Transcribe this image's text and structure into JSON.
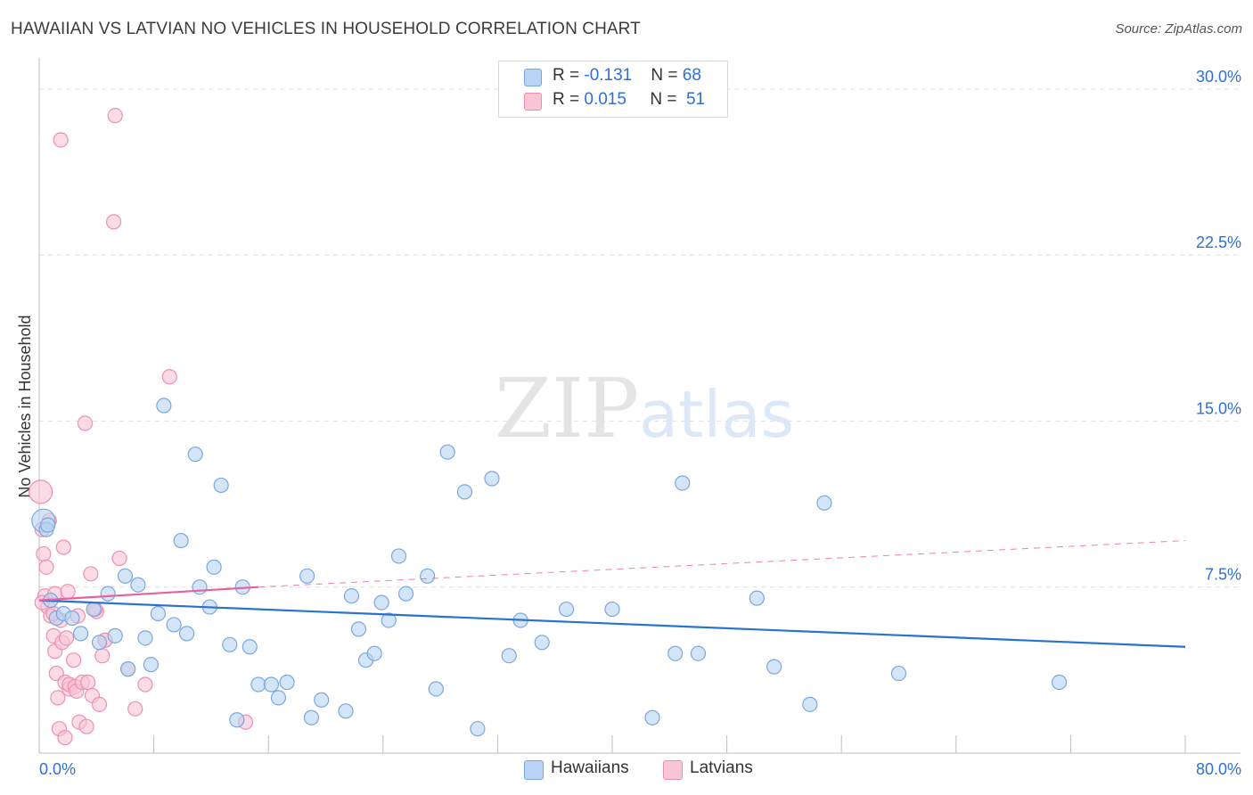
{
  "header": {
    "title": "HAWAIIAN VS LATVIAN NO VEHICLES IN HOUSEHOLD CORRELATION CHART",
    "source": "Source: ZipAtlas.com"
  },
  "watermark": {
    "zip": "ZIP",
    "atlas": "atlas"
  },
  "legend_top": [
    {
      "r_label": "R = ",
      "r_value": "-0.131",
      "n_label": "N = ",
      "n_value": "68"
    },
    {
      "r_label": "R = ",
      "r_value": "0.015",
      "n_label": "N = ",
      "n_value": "51"
    }
  ],
  "legend_bottom": [
    "Hawaiians",
    "Latvians"
  ],
  "colors": {
    "hawaiians_fill": "#b8d3f3",
    "hawaiians_stroke": "#7aa7e0",
    "hawaiians_line": "#2a72d0",
    "latvians_fill": "#f9c5d5",
    "latvians_stroke": "#ef8fb0",
    "latvians_line": "#e8609a",
    "axis_label": "#2f6fd6",
    "grid": "#dddddd"
  },
  "chart_data": {
    "type": "scatter",
    "title": "HAWAIIAN VS LATVIAN NO VEHICLES IN HOUSEHOLD CORRELATION CHART",
    "xlabel": "",
    "ylabel": "No Vehicles in Household",
    "xlim": [
      0,
      80
    ],
    "ylim": [
      0,
      31
    ],
    "x_tick_labels": [
      "0.0%",
      "80.0%"
    ],
    "y_ticks": [
      7.5,
      15.0,
      22.5,
      30.0
    ],
    "y_tick_labels": [
      "7.5%",
      "15.0%",
      "22.5%",
      "30.0%"
    ],
    "grid": true,
    "series": [
      {
        "name": "Hawaiians",
        "r": -0.131,
        "n": 68,
        "trend": {
          "x": [
            0,
            80
          ],
          "y": [
            6.9,
            4.8
          ],
          "dashed_extension": false
        },
        "points": [
          [
            0.3,
            10.5
          ],
          [
            0.5,
            10.1
          ],
          [
            0.8,
            6.9
          ],
          [
            1.2,
            6.1
          ],
          [
            1.7,
            6.3
          ],
          [
            2.3,
            6.1
          ],
          [
            2.9,
            5.4
          ],
          [
            3.8,
            6.5
          ],
          [
            4.2,
            5.0
          ],
          [
            4.8,
            7.2
          ],
          [
            5.3,
            5.3
          ],
          [
            6.0,
            8.0
          ],
          [
            6.2,
            3.8
          ],
          [
            6.9,
            7.6
          ],
          [
            7.4,
            5.2
          ],
          [
            7.8,
            4.0
          ],
          [
            8.3,
            6.3
          ],
          [
            8.7,
            15.7
          ],
          [
            9.4,
            5.8
          ],
          [
            9.9,
            9.6
          ],
          [
            10.3,
            5.4
          ],
          [
            10.9,
            13.5
          ],
          [
            11.2,
            7.5
          ],
          [
            11.9,
            6.6
          ],
          [
            12.2,
            8.4
          ],
          [
            12.7,
            12.1
          ],
          [
            13.3,
            4.9
          ],
          [
            13.8,
            1.5
          ],
          [
            14.2,
            7.5
          ],
          [
            14.7,
            4.8
          ],
          [
            15.3,
            3.1
          ],
          [
            16.2,
            3.1
          ],
          [
            16.7,
            2.5
          ],
          [
            17.3,
            3.2
          ],
          [
            18.7,
            8.0
          ],
          [
            19.0,
            1.6
          ],
          [
            19.7,
            2.4
          ],
          [
            21.4,
            1.9
          ],
          [
            21.8,
            7.1
          ],
          [
            22.3,
            5.6
          ],
          [
            22.8,
            4.2
          ],
          [
            23.4,
            4.5
          ],
          [
            23.9,
            6.8
          ],
          [
            24.4,
            6.0
          ],
          [
            25.1,
            8.9
          ],
          [
            25.6,
            7.2
          ],
          [
            27.1,
            8.0
          ],
          [
            27.7,
            2.9
          ],
          [
            28.5,
            13.6
          ],
          [
            29.7,
            11.8
          ],
          [
            30.6,
            1.1
          ],
          [
            31.6,
            12.4
          ],
          [
            32.8,
            4.4
          ],
          [
            33.6,
            6.0
          ],
          [
            35.1,
            5.0
          ],
          [
            36.8,
            6.5
          ],
          [
            40.0,
            6.5
          ],
          [
            42.8,
            1.6
          ],
          [
            44.4,
            4.5
          ],
          [
            44.9,
            12.2
          ],
          [
            46.0,
            4.5
          ],
          [
            50.1,
            7.0
          ],
          [
            51.3,
            3.9
          ],
          [
            53.8,
            2.2
          ],
          [
            54.8,
            11.3
          ],
          [
            60.0,
            3.6
          ],
          [
            71.2,
            3.2
          ],
          [
            0.6,
            10.3
          ]
        ]
      },
      {
        "name": "Latvians",
        "r": 0.015,
        "n": 51,
        "trend": {
          "x": [
            0,
            15.3
          ],
          "y": [
            6.9,
            7.5
          ],
          "dashed_extension": true,
          "dashed_to": {
            "x": 80,
            "y": 9.6
          }
        },
        "points": [
          [
            0.1,
            11.8
          ],
          [
            0.2,
            10.1
          ],
          [
            0.3,
            9.0
          ],
          [
            0.5,
            8.4
          ],
          [
            0.4,
            7.1
          ],
          [
            0.6,
            6.6
          ],
          [
            0.8,
            6.2
          ],
          [
            1.0,
            5.3
          ],
          [
            1.1,
            4.6
          ],
          [
            1.1,
            7.2
          ],
          [
            1.2,
            3.6
          ],
          [
            1.3,
            2.5
          ],
          [
            1.4,
            1.1
          ],
          [
            1.5,
            6.0
          ],
          [
            1.6,
            5.0
          ],
          [
            1.7,
            9.3
          ],
          [
            1.8,
            3.2
          ],
          [
            1.8,
            0.7
          ],
          [
            1.9,
            5.2
          ],
          [
            2.0,
            7.3
          ],
          [
            2.1,
            2.9
          ],
          [
            2.1,
            3.1
          ],
          [
            2.4,
            4.2
          ],
          [
            2.5,
            3.0
          ],
          [
            2.6,
            2.8
          ],
          [
            2.7,
            6.2
          ],
          [
            2.8,
            1.4
          ],
          [
            3.0,
            3.2
          ],
          [
            3.2,
            14.9
          ],
          [
            3.3,
            1.2
          ],
          [
            3.4,
            3.2
          ],
          [
            3.6,
            8.1
          ],
          [
            3.7,
            2.6
          ],
          [
            4.0,
            6.4
          ],
          [
            4.2,
            2.2
          ],
          [
            4.4,
            4.4
          ],
          [
            4.6,
            5.1
          ],
          [
            5.2,
            24.0
          ],
          [
            5.3,
            28.8
          ],
          [
            5.6,
            8.8
          ],
          [
            6.2,
            3.8
          ],
          [
            6.7,
            2.0
          ],
          [
            7.4,
            3.1
          ],
          [
            9.1,
            17.0
          ],
          [
            14.4,
            1.4
          ],
          [
            1.5,
            27.7
          ],
          [
            0.2,
            6.8
          ],
          [
            0.7,
            10.5
          ],
          [
            1.0,
            6.3
          ],
          [
            3.9,
            6.5
          ],
          [
            4.6,
            5.1
          ]
        ]
      }
    ]
  }
}
